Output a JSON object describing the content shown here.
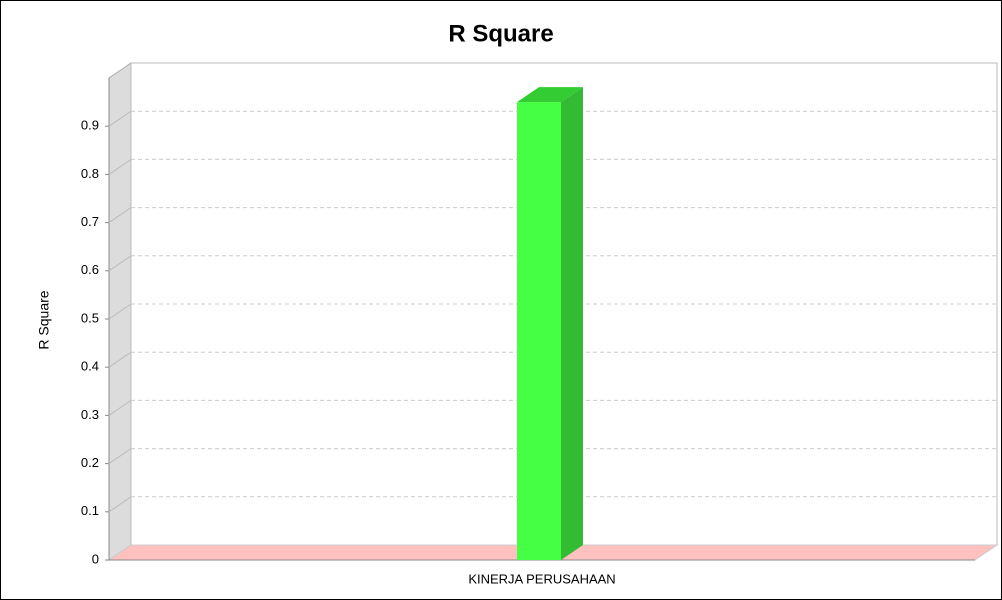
{
  "chart_data": {
    "type": "bar3d",
    "title": "R Square",
    "y_label": "R Square",
    "categories": [
      "KINERJA PERUSAHAAN"
    ],
    "values": [
      0.95
    ],
    "color": "#44ff44",
    "ylim": [
      0,
      1
    ],
    "yticks": [
      0,
      0.1,
      0.2,
      0.3,
      0.4,
      0.5,
      0.6,
      0.7,
      0.8,
      0.9
    ],
    "grid": true
  }
}
